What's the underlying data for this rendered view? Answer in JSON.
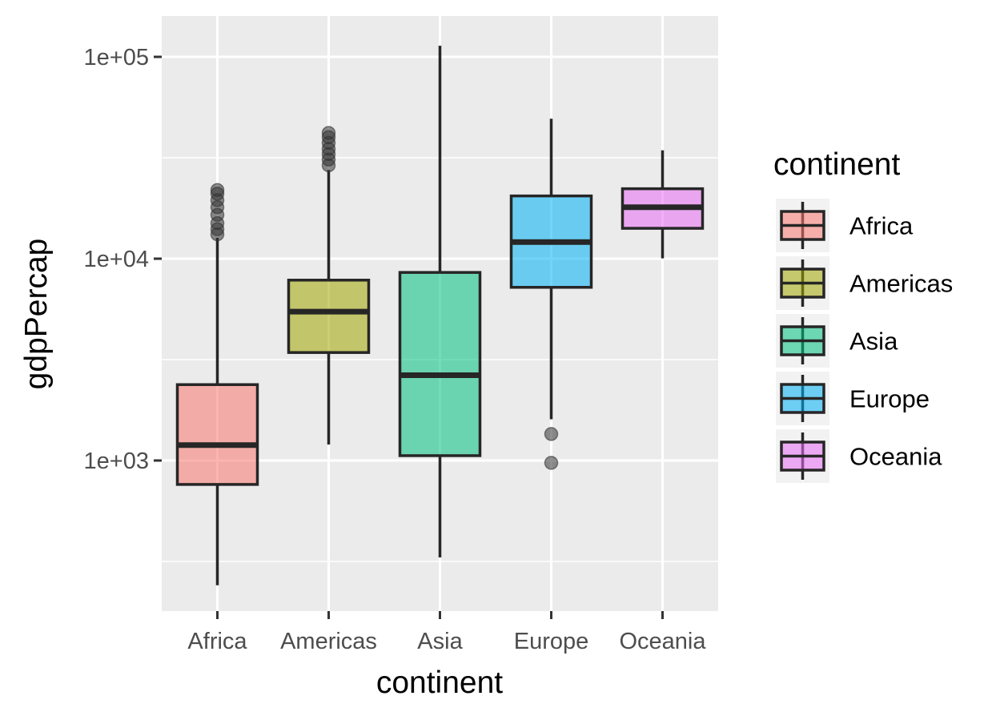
{
  "chart_data": {
    "type": "box",
    "xlabel": "continent",
    "ylabel": "gdpPercap",
    "y_scale": "log10",
    "y_ticks": [
      1000,
      10000,
      100000
    ],
    "y_tick_labels": [
      "1e+03",
      "1e+04",
      "1e+05"
    ],
    "ylim": [
      200,
      150000
    ],
    "grid": true,
    "legend": {
      "title": "continent",
      "position": "right"
    },
    "categories": [
      "Africa",
      "Americas",
      "Asia",
      "Europe",
      "Oceania"
    ],
    "series": [
      {
        "name": "Africa",
        "color": "#F8766D",
        "whisker_low": 241,
        "q1": 761,
        "median": 1192,
        "q3": 2377,
        "whisker_high": 12700,
        "outliers": [
          13200,
          14000,
          15000,
          16500,
          18000,
          19500,
          21000,
          21900
        ]
      },
      {
        "name": "Americas",
        "color": "#A3A500",
        "whisker_low": 1200,
        "q1": 3428,
        "median": 5466,
        "q3": 7830,
        "whisker_high": 27500,
        "outliers": [
          29000,
          31000,
          33000,
          35000,
          37500,
          40000,
          42000
        ]
      },
      {
        "name": "Asia",
        "color": "#00BF7D",
        "whisker_low": 331,
        "q1": 1057,
        "median": 2647,
        "q3": 8549,
        "whisker_high": 113523,
        "outliers": []
      },
      {
        "name": "Europe",
        "color": "#00B0F6",
        "whisker_low": 1600,
        "q1": 7213,
        "median": 12082,
        "q3": 20461,
        "whisker_high": 49357,
        "outliers": [
          1353,
          974
        ]
      },
      {
        "name": "Oceania",
        "color": "#E76BF3",
        "whisker_low": 10040,
        "q1": 14142,
        "median": 17983,
        "q3": 22214,
        "whisker_high": 34435,
        "outliers": []
      }
    ]
  }
}
